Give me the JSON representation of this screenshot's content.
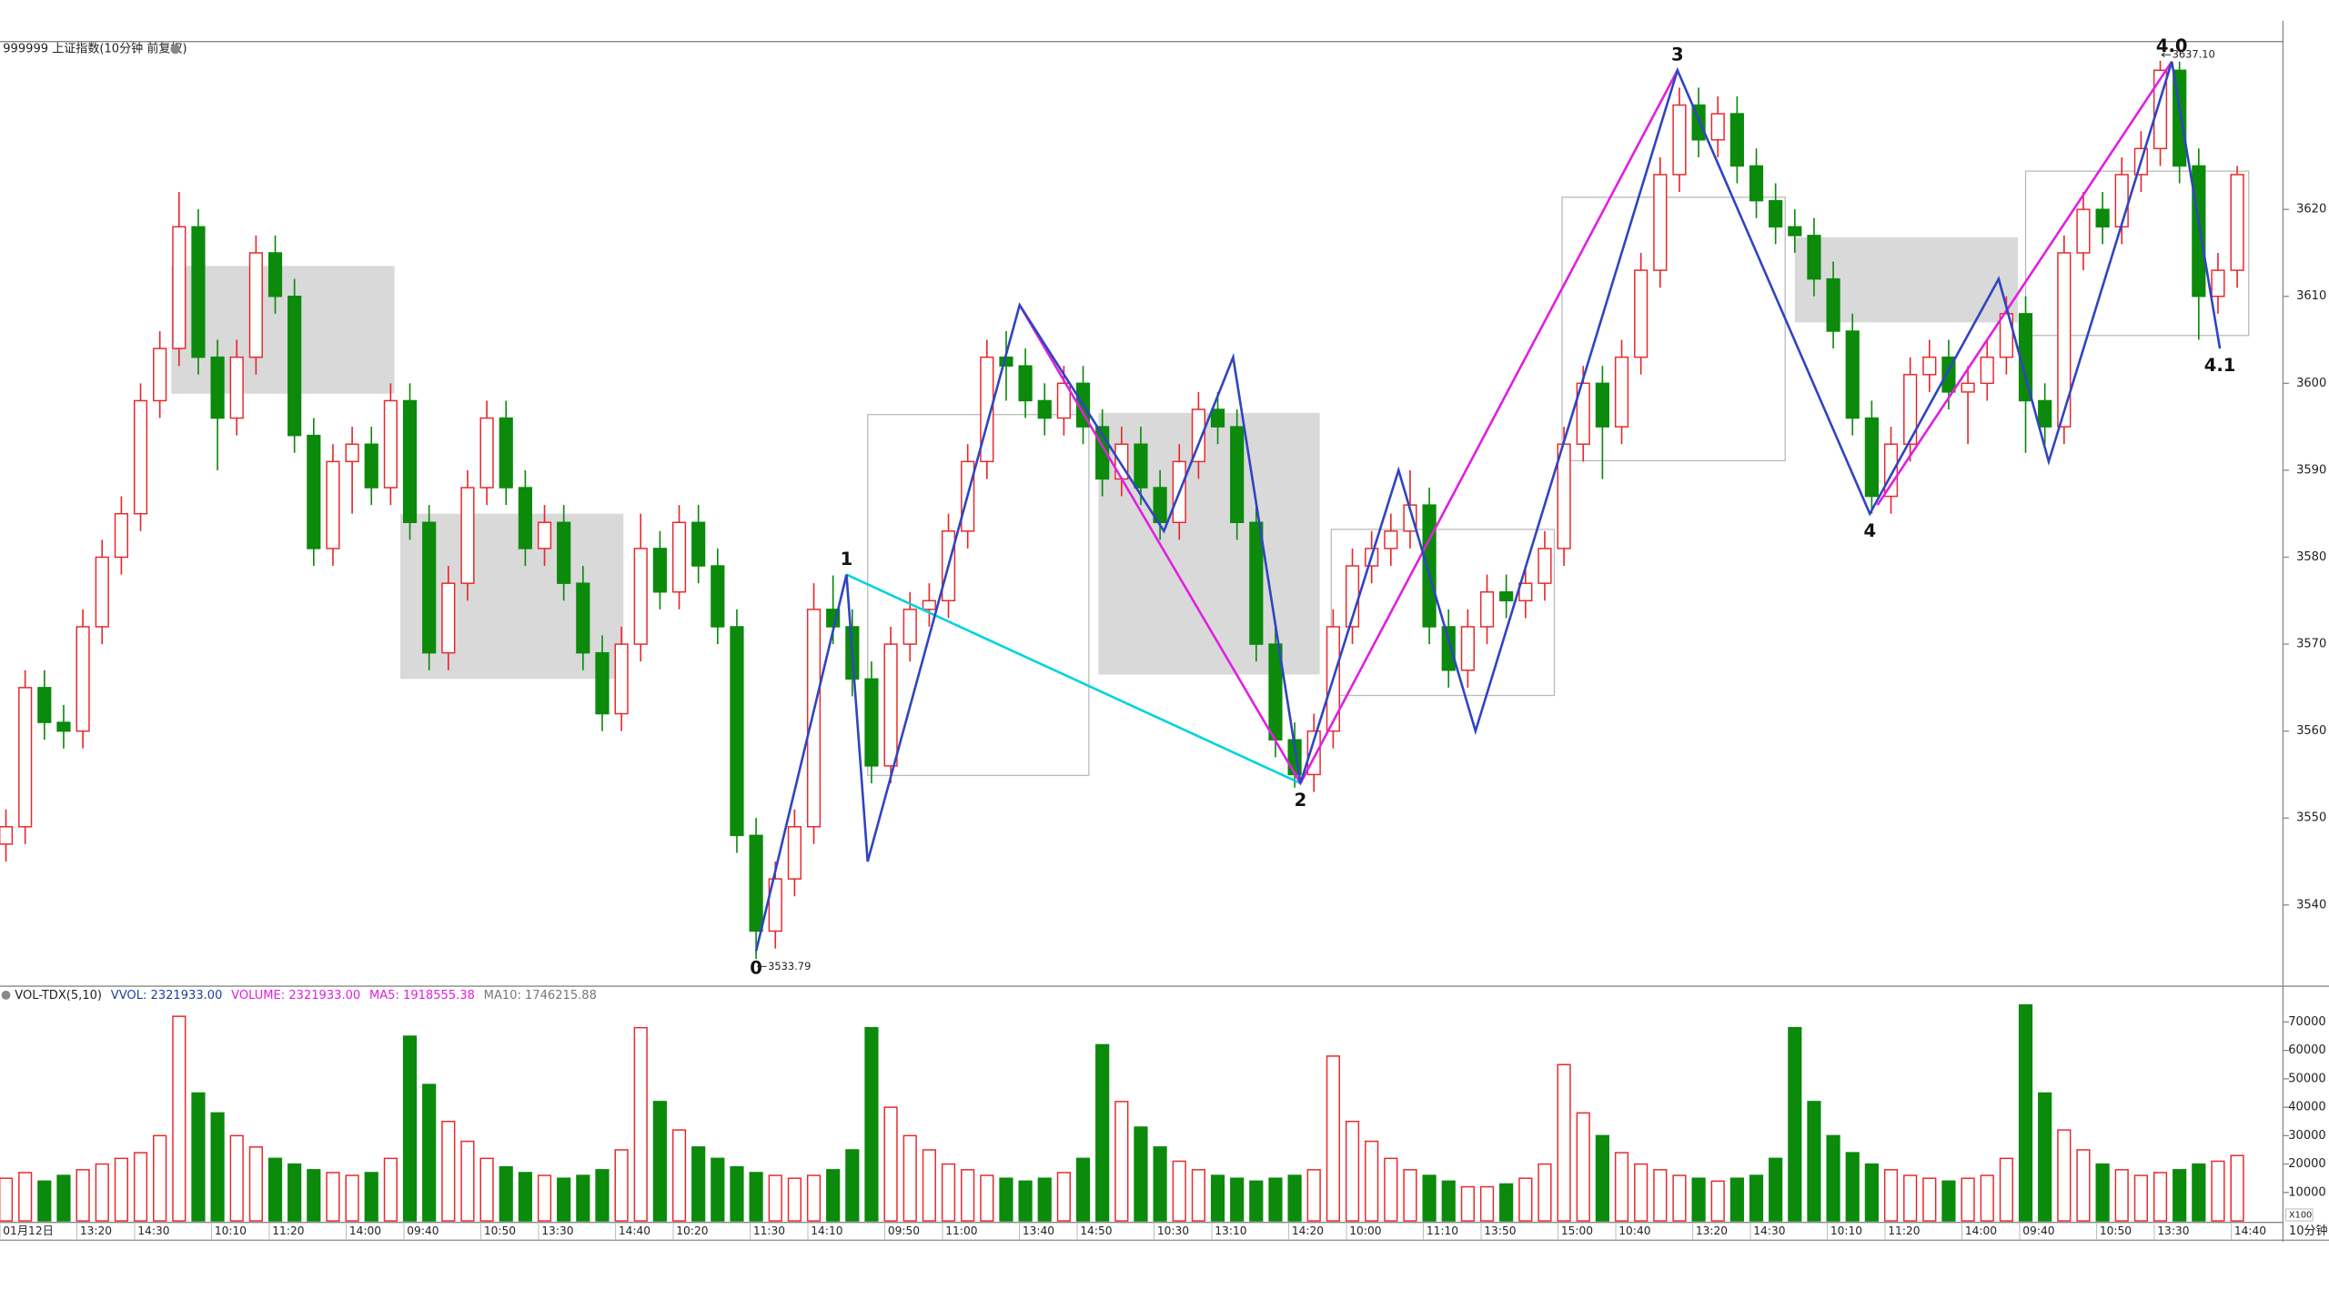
{
  "chart_data": [
    {
      "type": "candlestick",
      "title": "999999 上证指数(10分钟 前复权)",
      "categories": [
        "01月12日",
        null,
        null,
        null,
        "13:20",
        null,
        null,
        "14:30",
        null,
        null,
        null,
        "10:10",
        null,
        null,
        "11:20",
        null,
        null,
        null,
        "14:00",
        null,
        null,
        "09:40",
        null,
        null,
        null,
        "10:50",
        null,
        null,
        "13:30",
        null,
        null,
        null,
        "14:40",
        null,
        null,
        "10:20",
        null,
        null,
        null,
        "11:30",
        null,
        null,
        "14:10",
        null,
        null,
        null,
        "09:50",
        null,
        null,
        "11:00",
        null,
        null,
        null,
        "13:40",
        null,
        null,
        "14:50",
        null,
        null,
        null,
        "10:30",
        null,
        null,
        "13:10",
        null,
        null,
        null,
        "14:20",
        null,
        null,
        "10:00",
        null,
        null,
        null,
        "11:10",
        null,
        null,
        "13:50",
        null,
        null,
        null,
        "15:00",
        null,
        null,
        "10:40",
        null,
        null,
        null,
        "13:20",
        null,
        null,
        "14:30",
        null,
        null,
        null,
        "10:10",
        null,
        null,
        "11:20",
        null,
        null,
        null,
        "14:00",
        null,
        null,
        "09:40",
        null,
        null,
        null,
        "10:50",
        null,
        null,
        "13:30",
        null,
        null,
        null,
        "14:40"
      ],
      "open": [
        3547,
        3549,
        3565,
        3561,
        3560,
        3572,
        3580,
        3585,
        3598,
        3604,
        3618,
        3603,
        3596,
        3603,
        3615,
        3610,
        3594,
        3581,
        3591,
        3593,
        3588,
        3598,
        3584,
        3569,
        3577,
        3588,
        3596,
        3588,
        3581,
        3584,
        3577,
        3569,
        3562,
        3570,
        3581,
        3576,
        3584,
        3579,
        3572,
        3548,
        3537,
        3543,
        3549,
        3574,
        3572,
        3566,
        3556,
        3570,
        3574,
        3575,
        3583,
        3591,
        3603,
        3602,
        3598,
        3596,
        3600,
        3595,
        3589,
        3593,
        3588,
        3584,
        3591,
        3597,
        3595,
        3584,
        3570,
        3559,
        3555,
        3560,
        3572,
        3579,
        3581,
        3583,
        3586,
        3572,
        3567,
        3572,
        3576,
        3575,
        3577,
        3581,
        3593,
        3600,
        3595,
        3603,
        3613,
        3624,
        3632,
        3628,
        3631,
        3625,
        3621,
        3618,
        3617,
        3612,
        3606,
        3596,
        3587,
        3593,
        3601,
        3603,
        3599,
        3600,
        3603,
        3608,
        3598,
        3595,
        3615,
        3620,
        3618,
        3624,
        3627,
        3636,
        3625,
        3610,
        3613
      ],
      "high": [
        3551,
        3567,
        3567,
        3563,
        3574,
        3582,
        3587,
        3600,
        3606,
        3622,
        3620,
        3605,
        3605,
        3617,
        3617,
        3612,
        3596,
        3593,
        3595,
        3595,
        3600,
        3600,
        3586,
        3579,
        3590,
        3598,
        3598,
        3590,
        3586,
        3586,
        3579,
        3571,
        3572,
        3585,
        3583,
        3586,
        3586,
        3581,
        3574,
        3550,
        3545,
        3551,
        3577,
        3577.9,
        3574,
        3568,
        3572,
        3576,
        3577,
        3585,
        3593,
        3605,
        3606,
        3604,
        3600,
        3602,
        3602,
        3597,
        3595,
        3595,
        3590,
        3593,
        3599,
        3599,
        3597,
        3586,
        3572,
        3561,
        3562,
        3574,
        3581,
        3583,
        3585,
        3590,
        3588,
        3574,
        3574,
        3578,
        3578,
        3579,
        3583,
        3595,
        3602,
        3602,
        3605,
        3615,
        3626,
        3634,
        3634,
        3633,
        3633,
        3627,
        3623,
        3620,
        3619,
        3614,
        3608,
        3598,
        3595,
        3603,
        3605,
        3605,
        3602,
        3605,
        3610,
        3610,
        3600,
        3617,
        3622,
        3622,
        3626,
        3629,
        3637.1,
        3637,
        3627,
        3615,
        3625
      ],
      "low": [
        3545,
        3547,
        3559,
        3558,
        3558,
        3570,
        3578,
        3583,
        3596,
        3602,
        3601,
        3590,
        3594,
        3601,
        3608,
        3592,
        3579,
        3579,
        3585,
        3586,
        3586,
        3582,
        3567,
        3567,
        3575,
        3586,
        3586,
        3579,
        3579,
        3575,
        3567,
        3560,
        3560,
        3568,
        3574,
        3574,
        3577,
        3570,
        3546,
        3533.79,
        3535,
        3541,
        3547,
        3570,
        3564,
        3554,
        3554,
        3568,
        3572,
        3573,
        3581,
        3589,
        3598,
        3596,
        3594,
        3594,
        3593,
        3587,
        3587,
        3586,
        3582,
        3582,
        3589,
        3593,
        3582,
        3568,
        3557,
        3553.5,
        3553,
        3558,
        3570,
        3577,
        3579,
        3581,
        3570,
        3565,
        3565,
        3570,
        3573,
        3573,
        3575,
        3579,
        3591,
        3589,
        3593,
        3601,
        3611,
        3622,
        3626,
        3626,
        3623,
        3619,
        3616,
        3615,
        3610,
        3604,
        3594,
        3585,
        3585,
        3591,
        3599,
        3597,
        3593,
        3598,
        3601,
        3592,
        3593,
        3593,
        3613,
        3616,
        3616,
        3622,
        3625,
        3623,
        3605,
        3608,
        3611
      ],
      "close": [
        3549,
        3565,
        3561,
        3560,
        3572,
        3580,
        3585,
        3598,
        3604,
        3618,
        3603,
        3596,
        3603,
        3615,
        3610,
        3594,
        3581,
        3591,
        3593,
        3588,
        3598,
        3584,
        3569,
        3577,
        3588,
        3596,
        3588,
        3581,
        3584,
        3577,
        3569,
        3562,
        3570,
        3581,
        3576,
        3584,
        3579,
        3572,
        3548,
        3537,
        3543,
        3549,
        3574,
        3572,
        3566,
        3556,
        3570,
        3574,
        3575,
        3583,
        3591,
        3603,
        3602,
        3598,
        3596,
        3600,
        3595,
        3589,
        3593,
        3588,
        3584,
        3591,
        3597,
        3595,
        3584,
        3570,
        3559,
        3555,
        3560,
        3572,
        3579,
        3581,
        3583,
        3586,
        3572,
        3567,
        3572,
        3576,
        3575,
        3577,
        3581,
        3593,
        3600,
        3595,
        3603,
        3613,
        3624,
        3632,
        3628,
        3631,
        3625,
        3621,
        3618,
        3617,
        3612,
        3606,
        3596,
        3587,
        3593,
        3601,
        3603,
        3599,
        3600,
        3603,
        3608,
        3598,
        3595,
        3615,
        3620,
        3618,
        3624,
        3627,
        3636,
        3625,
        3610,
        3613,
        3624
      ],
      "up_color": "#e8272b",
      "down_color": "#0b8a0b",
      "ylim": [
        3531,
        3639.3
      ],
      "yticks": [
        3540,
        3550,
        3560,
        3570,
        3580,
        3590,
        3600,
        3610,
        3620
      ],
      "boxes": [
        {
          "x": [
            8.6,
            20.2
          ],
          "y": [
            3598.8,
            3613.5
          ],
          "filled": true
        },
        {
          "x": [
            20.5,
            32.1
          ],
          "y": [
            3566,
            3585
          ],
          "filled": true
        },
        {
          "x": [
            56.8,
            68.3
          ],
          "y": [
            3566.5,
            3596.6
          ],
          "filled": true
        },
        {
          "x": [
            93,
            104.6
          ],
          "y": [
            3607,
            3616.8
          ],
          "filled": true
        },
        {
          "x": [
            44.8,
            56.3
          ],
          "y": [
            3554.9,
            3596.4
          ],
          "filled": false
        },
        {
          "x": [
            68.9,
            80.5
          ],
          "y": [
            3564.1,
            3583.2
          ],
          "filled": false
        },
        {
          "x": [
            80.9,
            92.5
          ],
          "y": [
            3591.1,
            3621.4
          ],
          "filled": false
        },
        {
          "x": [
            105,
            116.6
          ],
          "y": [
            3605.5,
            3624.4
          ],
          "filled": false
        }
      ],
      "zigzags": [
        {
          "color": "#00d4dc",
          "x": [
            43.7,
            67.3
          ],
          "y": [
            3578,
            3554
          ]
        },
        {
          "color": "#e020e0",
          "x": [
            52.7,
            67.3,
            86.9
          ],
          "y": [
            3609,
            3554,
            3636
          ]
        },
        {
          "color": "#e020e0",
          "x": [
            97.3,
            112.6
          ],
          "y": [
            3586,
            3637
          ]
        },
        {
          "color": "#3045c0",
          "x": [
            39,
            43.7,
            44.8,
            52.7,
            60.2,
            63.8,
            67.3,
            72.4,
            76.4,
            86.9,
            96.9,
            103.6,
            106.2,
            112.6,
            115.1
          ],
          "y": [
            3534.7,
            3578,
            3545,
            3609,
            3583,
            3603,
            3554,
            3590,
            3560,
            3636,
            3585,
            3612,
            3591,
            3637,
            3604
          ]
        }
      ],
      "wave_labels": [
        {
          "text": "0",
          "x": 39,
          "y": 3534.7,
          "pos": "below"
        },
        {
          "text": "1",
          "x": 43.7,
          "y": 3578,
          "pos": "above"
        },
        {
          "text": "2",
          "x": 67.3,
          "y": 3554,
          "pos": "below"
        },
        {
          "text": "3",
          "x": 86.9,
          "y": 3636,
          "pos": "above"
        },
        {
          "text": "4",
          "x": 96.9,
          "y": 3585,
          "pos": "below"
        },
        {
          "text": "4.0",
          "x": 112.6,
          "y": 3637,
          "pos": "above"
        },
        {
          "text": "4.1",
          "x": 115.1,
          "y": 3604,
          "pos": "below"
        }
      ],
      "price_marks": [
        {
          "value": 3533.79,
          "label": "3533.79",
          "field": "low"
        },
        {
          "value": 3637.1,
          "label": "3637.10",
          "field": "high"
        }
      ],
      "period_label": "10分钟"
    },
    {
      "type": "bar",
      "title": "VOL-TDX(5,10)",
      "stats": [
        {
          "text": "VVOL: 2321933.00",
          "color": "#1f3fa0"
        },
        {
          "text": "VOLUME: 2321933.00",
          "color": "#e020e0"
        },
        {
          "text": "MA5: 1918555.38",
          "color": "#e020e0"
        },
        {
          "text": "MA10: 1746215.88",
          "color": "#777777"
        }
      ],
      "values": [
        15000,
        17000,
        14000,
        16000,
        18000,
        20000,
        22000,
        24000,
        30000,
        72000,
        45000,
        38000,
        30000,
        26000,
        22000,
        20000,
        18000,
        17000,
        16000,
        17000,
        22000,
        65000,
        48000,
        35000,
        28000,
        22000,
        19000,
        17000,
        16000,
        15000,
        16000,
        18000,
        25000,
        68000,
        42000,
        32000,
        26000,
        22000,
        19000,
        17000,
        16000,
        15000,
        16000,
        18000,
        25000,
        68000,
        40000,
        30000,
        25000,
        20000,
        18000,
        16000,
        15000,
        14000,
        15000,
        17000,
        22000,
        62000,
        42000,
        33000,
        26000,
        21000,
        18000,
        16000,
        15000,
        14000,
        15000,
        16000,
        18000,
        58000,
        35000,
        28000,
        22000,
        18000,
        16000,
        14000,
        12000,
        12000,
        13000,
        15000,
        20000,
        55000,
        38000,
        30000,
        24000,
        20000,
        18000,
        16000,
        15000,
        14000,
        15000,
        16000,
        22000,
        68000,
        42000,
        30000,
        24000,
        20000,
        18000,
        16000,
        15000,
        14000,
        15000,
        16000,
        22000,
        76000,
        45000,
        32000,
        25000,
        20000,
        18000,
        16000,
        17000,
        18000,
        20000,
        21000,
        23000
      ],
      "ylim": [
        0,
        80500
      ],
      "yticks": [
        10000,
        20000,
        30000,
        40000,
        50000,
        60000,
        70000
      ],
      "scale_label": "X100"
    }
  ]
}
